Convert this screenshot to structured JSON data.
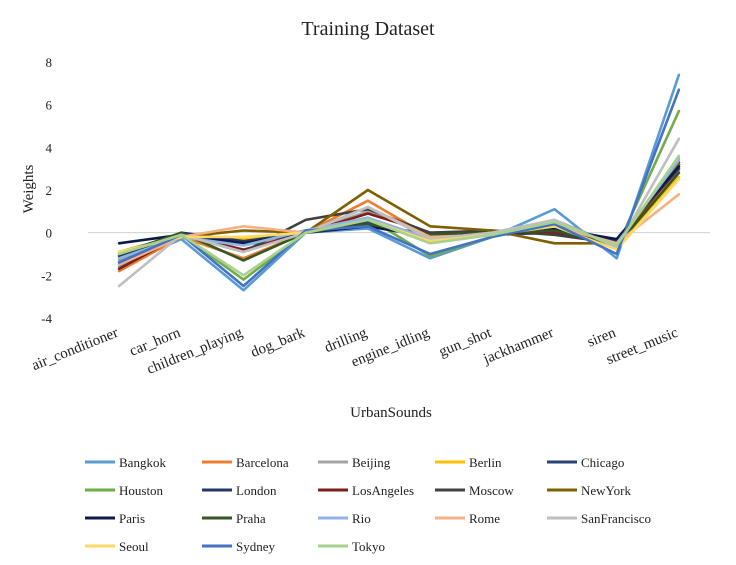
{
  "chart_data": {
    "type": "line",
    "title": "Training Dataset",
    "xlabel": "UrbanSounds",
    "ylabel": "Weights",
    "ylim": [
      -4,
      8
    ],
    "yticks": [
      -4,
      -2,
      0,
      2,
      4,
      6,
      8
    ],
    "grid": false,
    "legend_position": "bottom",
    "categories": [
      "air_conditioner",
      "car_horn",
      "children_playing",
      "dog_bark",
      "drilling",
      "engine_idling",
      "gun_shot",
      "jackhammer",
      "siren",
      "street_music"
    ],
    "series": [
      {
        "name": "Bangkok",
        "color": "#5B9BD5",
        "values": [
          -1.6,
          -0.3,
          -2.7,
          0.0,
          0.2,
          -1.2,
          -0.2,
          1.1,
          -1.2,
          7.4
        ]
      },
      {
        "name": "Barcelona",
        "color": "#ED7D31",
        "values": [
          -1.8,
          -0.2,
          -1.2,
          0.0,
          1.5,
          -0.2,
          -0.1,
          0.3,
          -0.4,
          2.9
        ]
      },
      {
        "name": "Beijing",
        "color": "#A5A5A5",
        "values": [
          -1.3,
          -0.1,
          -0.6,
          0.0,
          1.0,
          -0.1,
          0.0,
          0.6,
          -0.6,
          3.5
        ]
      },
      {
        "name": "Berlin",
        "color": "#FFC000",
        "values": [
          -1.0,
          -0.2,
          -0.3,
          0.0,
          0.6,
          -0.3,
          0.0,
          0.2,
          -0.7,
          2.6
        ]
      },
      {
        "name": "Chicago",
        "color": "#264478",
        "values": [
          -1.4,
          -0.1,
          -0.5,
          0.1,
          0.5,
          -0.4,
          -0.1,
          0.0,
          -0.3,
          3.0
        ]
      },
      {
        "name": "Houston",
        "color": "#70AD47",
        "values": [
          -0.9,
          -0.1,
          -2.2,
          0.0,
          0.7,
          -1.1,
          -0.2,
          0.4,
          -0.7,
          5.7
        ]
      },
      {
        "name": "London",
        "color": "#1F3864",
        "values": [
          -1.1,
          0.0,
          -0.4,
          0.0,
          0.4,
          -0.1,
          0.0,
          0.1,
          -0.4,
          3.2
        ]
      },
      {
        "name": "LosAngeles",
        "color": "#7F1D1D",
        "values": [
          -1.7,
          -0.1,
          -0.8,
          0.0,
          0.9,
          0.0,
          0.0,
          0.0,
          -0.5,
          3.1
        ]
      },
      {
        "name": "Moscow",
        "color": "#404040",
        "values": [
          -1.2,
          -0.1,
          -0.9,
          0.6,
          1.1,
          0.0,
          0.1,
          -0.1,
          -0.5,
          3.3
        ]
      },
      {
        "name": "NewYork",
        "color": "#7F6000",
        "values": [
          -1.5,
          -0.2,
          0.1,
          0.0,
          2.0,
          0.3,
          0.1,
          -0.5,
          -0.5,
          3.2
        ]
      },
      {
        "name": "Paris",
        "color": "#0B1A4A",
        "values": [
          -0.5,
          -0.1,
          -0.5,
          0.0,
          0.3,
          -0.2,
          -0.1,
          0.2,
          -0.3,
          3.1
        ]
      },
      {
        "name": "Praha",
        "color": "#375623",
        "values": [
          -1.0,
          0.0,
          -1.3,
          0.0,
          0.4,
          -0.1,
          0.0,
          0.1,
          -0.6,
          2.8
        ]
      },
      {
        "name": "Rio",
        "color": "#8FB4E3",
        "values": [
          -1.2,
          -0.2,
          -0.6,
          0.1,
          0.7,
          -0.3,
          0.0,
          0.3,
          -0.5,
          3.4
        ]
      },
      {
        "name": "Rome",
        "color": "#F4B183",
        "values": [
          -1.5,
          -0.2,
          0.3,
          0.0,
          1.2,
          -0.2,
          -0.1,
          0.3,
          -0.5,
          1.8
        ]
      },
      {
        "name": "SanFrancisco",
        "color": "#BFBFBF",
        "values": [
          -2.5,
          -0.1,
          -0.9,
          0.0,
          1.2,
          -0.3,
          0.0,
          0.6,
          -0.7,
          4.4
        ]
      },
      {
        "name": "Seoul",
        "color": "#FFD966",
        "values": [
          -0.9,
          -0.2,
          -0.2,
          0.0,
          0.6,
          -0.4,
          -0.1,
          0.3,
          -0.8,
          2.5
        ]
      },
      {
        "name": "Sydney",
        "color": "#4472C4",
        "values": [
          -1.4,
          -0.1,
          -2.5,
          0.1,
          0.3,
          -1.0,
          -0.2,
          0.4,
          -1.0,
          6.7
        ]
      },
      {
        "name": "Tokyo",
        "color": "#A9D18E",
        "values": [
          -1.0,
          -0.1,
          -2.0,
          0.0,
          0.6,
          -0.5,
          -0.1,
          0.5,
          -0.6,
          3.6
        ]
      }
    ]
  }
}
